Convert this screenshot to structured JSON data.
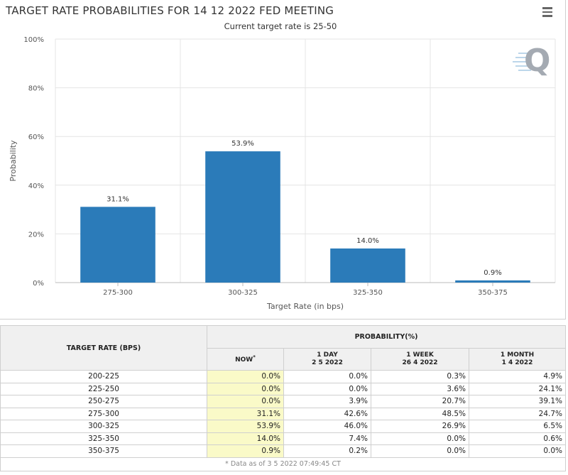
{
  "chart_data": {
    "type": "bar",
    "title": "TARGET RATE PROBABILITIES FOR 14 12 2022 FED MEETING",
    "subtitle": "Current target rate is 25-50",
    "categories": [
      "275-300",
      "300-325",
      "325-350",
      "350-375"
    ],
    "values": [
      31.1,
      53.9,
      14.0,
      0.9
    ],
    "data_labels": [
      "31.1%",
      "53.9%",
      "14.0%",
      "0.9%"
    ],
    "xlabel": "Target Rate (in bps)",
    "ylabel": "Probability",
    "ylim": [
      0,
      100
    ],
    "yticks": [
      "0%",
      "20%",
      "40%",
      "60%",
      "80%",
      "100%"
    ],
    "ytick_values": [
      0,
      20,
      40,
      60,
      80,
      100
    ],
    "grid": true,
    "bar_color": "#2b7bb9"
  },
  "menu_icon": "hamburger-menu-icon",
  "logo_icon": "q-logo-icon",
  "table": {
    "head_rate": "TARGET RATE (BPS)",
    "head_prob": "PROBABILITY(%)",
    "col_now": "NOW",
    "col_now_mark": "*",
    "col_day_1": "1 DAY",
    "col_day_2": "2 5 2022",
    "col_week_1": "1 WEEK",
    "col_week_2": "26 4 2022",
    "col_month_1": "1 MONTH",
    "col_month_2": "1 4 2022",
    "rows": [
      {
        "rate": "200-225",
        "now": "0.0%",
        "day": "0.0%",
        "week": "0.3%",
        "month": "4.9%"
      },
      {
        "rate": "225-250",
        "now": "0.0%",
        "day": "0.0%",
        "week": "3.6%",
        "month": "24.1%"
      },
      {
        "rate": "250-275",
        "now": "0.0%",
        "day": "3.9%",
        "week": "20.7%",
        "month": "39.1%"
      },
      {
        "rate": "275-300",
        "now": "31.1%",
        "day": "42.6%",
        "week": "48.5%",
        "month": "24.7%"
      },
      {
        "rate": "300-325",
        "now": "53.9%",
        "day": "46.0%",
        "week": "26.9%",
        "month": "6.5%"
      },
      {
        "rate": "325-350",
        "now": "14.0%",
        "day": "7.4%",
        "week": "0.0%",
        "month": "0.6%"
      },
      {
        "rate": "350-375",
        "now": "0.9%",
        "day": "0.2%",
        "week": "0.0%",
        "month": "0.0%"
      }
    ],
    "footer": "* Data as of 3 5 2022 07:49:45 CT"
  }
}
